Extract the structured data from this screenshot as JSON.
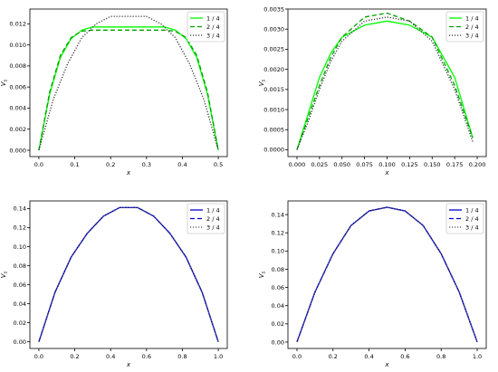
{
  "chart_data": [
    {
      "type": "line",
      "xlabel": "x",
      "ylabel": "V_s",
      "xlim": [
        -0.025,
        0.525
      ],
      "ylim": [
        -0.0006,
        0.0134
      ],
      "xticks": [
        0.0,
        0.1,
        0.2,
        0.3,
        0.4,
        0.5
      ],
      "xtick_labels": [
        "0.0",
        "0.1",
        "0.2",
        "0.3",
        "0.4",
        "0.5"
      ],
      "yticks": [
        0.0,
        0.002,
        0.004,
        0.006,
        0.008,
        0.01,
        0.012
      ],
      "ytick_labels": [
        "0.000",
        "0.002",
        "0.004",
        "0.006",
        "0.008",
        "0.010",
        "0.012"
      ],
      "grid": false,
      "legend_position": "top-right",
      "series": [
        {
          "name": "1 / 4",
          "color": "#00ff00",
          "style": "solid",
          "x": [
            0.0,
            0.03,
            0.06,
            0.09,
            0.12,
            0.15,
            0.25,
            0.35,
            0.38,
            0.41,
            0.44,
            0.47,
            0.5
          ],
          "y": [
            0.0,
            0.0053,
            0.0088,
            0.0106,
            0.0114,
            0.0117,
            0.0117,
            0.0117,
            0.0114,
            0.0106,
            0.0088,
            0.0053,
            0.0
          ]
        },
        {
          "name": "2 / 4",
          "color": "#00a000",
          "style": "dashed",
          "x": [
            0.0,
            0.03,
            0.06,
            0.09,
            0.12,
            0.15,
            0.25,
            0.35,
            0.38,
            0.41,
            0.44,
            0.47,
            0.5
          ],
          "y": [
            0.0,
            0.0055,
            0.009,
            0.0107,
            0.0113,
            0.0114,
            0.0114,
            0.0114,
            0.0113,
            0.0107,
            0.009,
            0.0055,
            0.0
          ]
        },
        {
          "name": "3 / 4",
          "color": "#333333",
          "style": "dotted",
          "x": [
            0.0,
            0.04,
            0.08,
            0.12,
            0.16,
            0.2,
            0.3,
            0.34,
            0.38,
            0.42,
            0.46,
            0.5
          ],
          "y": [
            0.0,
            0.0048,
            0.0082,
            0.0107,
            0.012,
            0.0127,
            0.0127,
            0.012,
            0.0107,
            0.0082,
            0.0048,
            0.0
          ]
        }
      ]
    },
    {
      "type": "line",
      "xlabel": "x",
      "ylabel": "V_s",
      "xlim": [
        -0.01,
        0.21
      ],
      "ylim": [
        -0.00017,
        0.0035
      ],
      "xticks": [
        0.0,
        0.025,
        0.05,
        0.075,
        0.1,
        0.125,
        0.15,
        0.175,
        0.2
      ],
      "xtick_labels": [
        "0.000",
        "0.025",
        "0.050",
        "0.075",
        "0.100",
        "0.125",
        "0.150",
        "0.175",
        "0.200"
      ],
      "yticks": [
        0.0,
        0.0005,
        0.001,
        0.0015,
        0.002,
        0.0025,
        0.003,
        0.0035
      ],
      "ytick_labels": [
        "0.0000",
        "0.0005",
        "0.0010",
        "0.0015",
        "0.0020",
        "0.0025",
        "0.0030",
        "0.0035"
      ],
      "grid": false,
      "legend_position": "top-right",
      "series": [
        {
          "name": "1 / 4",
          "color": "#00ff00",
          "style": "solid",
          "x": [
            0.0,
            0.0125,
            0.025,
            0.0375,
            0.05,
            0.075,
            0.1,
            0.125,
            0.15,
            0.175,
            0.195
          ],
          "y": [
            0.0,
            0.0009,
            0.0018,
            0.0024,
            0.0028,
            0.0031,
            0.0032,
            0.0031,
            0.0028,
            0.0018,
            0.0003
          ]
        },
        {
          "name": "2 / 4",
          "color": "#00a000",
          "style": "dashed",
          "x": [
            0.0,
            0.0125,
            0.025,
            0.0375,
            0.05,
            0.075,
            0.1,
            0.125,
            0.15,
            0.175,
            0.195
          ],
          "y": [
            0.0,
            0.0008,
            0.0016,
            0.0023,
            0.0028,
            0.0033,
            0.0034,
            0.0032,
            0.0028,
            0.0016,
            0.0003
          ]
        },
        {
          "name": "3 / 4",
          "color": "#333333",
          "style": "dotted",
          "x": [
            0.0,
            0.0125,
            0.025,
            0.0375,
            0.05,
            0.075,
            0.1,
            0.125,
            0.15,
            0.175,
            0.195
          ],
          "y": [
            0.0,
            0.0007,
            0.0015,
            0.0022,
            0.0027,
            0.0032,
            0.0033,
            0.0032,
            0.0027,
            0.0015,
            0.0002
          ]
        }
      ]
    },
    {
      "type": "line",
      "xlabel": "x",
      "ylabel": "V_s",
      "xlim": [
        -0.05,
        1.05
      ],
      "ylim": [
        -0.007,
        0.148
      ],
      "xticks": [
        0.0,
        0.2,
        0.4,
        0.6,
        0.8,
        1.0
      ],
      "xtick_labels": [
        "0.0",
        "0.2",
        "0.4",
        "0.6",
        "0.8",
        "1.0"
      ],
      "yticks": [
        0.0,
        0.02,
        0.04,
        0.06,
        0.08,
        0.1,
        0.12,
        0.14
      ],
      "ytick_labels": [
        "0.00",
        "0.02",
        "0.04",
        "0.06",
        "0.08",
        "0.10",
        "0.12",
        "0.14"
      ],
      "grid": false,
      "legend_position": "top-right",
      "series": [
        {
          "name": "1 / 4",
          "color": "#0000cc",
          "style": "solid",
          "x": [
            0.0,
            0.09,
            0.18,
            0.27,
            0.36,
            0.45,
            0.55,
            0.64,
            0.73,
            0.82,
            0.91,
            1.0
          ],
          "y": [
            0.0,
            0.052,
            0.089,
            0.114,
            0.132,
            0.141,
            0.141,
            0.132,
            0.114,
            0.089,
            0.052,
            0.0
          ]
        },
        {
          "name": "2 / 4",
          "color": "#0000cc",
          "style": "dashed",
          "x": [
            0.0,
            0.09,
            0.18,
            0.27,
            0.36,
            0.45,
            0.55,
            0.64,
            0.73,
            0.82,
            0.91,
            1.0
          ],
          "y": [
            0.0,
            0.052,
            0.089,
            0.114,
            0.132,
            0.141,
            0.141,
            0.132,
            0.114,
            0.089,
            0.052,
            0.0
          ]
        },
        {
          "name": "3 / 4",
          "color": "#555555",
          "style": "dotted",
          "x": [
            0.0,
            0.09,
            0.18,
            0.27,
            0.36,
            0.45,
            0.55,
            0.64,
            0.73,
            0.82,
            0.91,
            1.0
          ],
          "y": [
            0.0,
            0.052,
            0.089,
            0.114,
            0.132,
            0.141,
            0.141,
            0.132,
            0.114,
            0.089,
            0.052,
            0.0
          ]
        }
      ]
    },
    {
      "type": "line",
      "xlabel": "x",
      "ylabel": "V_s",
      "xlim": [
        -0.05,
        1.05
      ],
      "ylim": [
        -0.007,
        0.155
      ],
      "xticks": [
        0.0,
        0.2,
        0.4,
        0.6,
        0.8,
        1.0
      ],
      "xtick_labels": [
        "0.0",
        "0.2",
        "0.4",
        "0.6",
        "0.8",
        "1.0"
      ],
      "yticks": [
        0.0,
        0.02,
        0.04,
        0.06,
        0.08,
        0.1,
        0.12,
        0.14
      ],
      "ytick_labels": [
        "0.00",
        "0.02",
        "0.04",
        "0.06",
        "0.08",
        "0.10",
        "0.12",
        "0.14"
      ],
      "grid": false,
      "legend_position": "top-right",
      "series": [
        {
          "name": "1 / 4",
          "color": "#0000cc",
          "style": "solid",
          "x": [
            0.0,
            0.1,
            0.2,
            0.3,
            0.4,
            0.5,
            0.6,
            0.7,
            0.8,
            0.9,
            1.0
          ],
          "y": [
            0.0,
            0.055,
            0.097,
            0.128,
            0.144,
            0.148,
            0.144,
            0.128,
            0.097,
            0.055,
            0.0
          ]
        },
        {
          "name": "2 / 4",
          "color": "#0000cc",
          "style": "dashed",
          "x": [
            0.0,
            0.1,
            0.2,
            0.3,
            0.4,
            0.5,
            0.6,
            0.7,
            0.8,
            0.9,
            1.0
          ],
          "y": [
            0.0,
            0.055,
            0.097,
            0.128,
            0.144,
            0.148,
            0.144,
            0.128,
            0.097,
            0.055,
            0.0
          ]
        },
        {
          "name": "3 / 4",
          "color": "#555555",
          "style": "dotted",
          "x": [
            0.0,
            0.1,
            0.2,
            0.3,
            0.4,
            0.5,
            0.6,
            0.7,
            0.8,
            0.9,
            1.0
          ],
          "y": [
            0.0,
            0.055,
            0.097,
            0.128,
            0.144,
            0.148,
            0.144,
            0.128,
            0.097,
            0.055,
            0.0
          ]
        }
      ]
    }
  ]
}
